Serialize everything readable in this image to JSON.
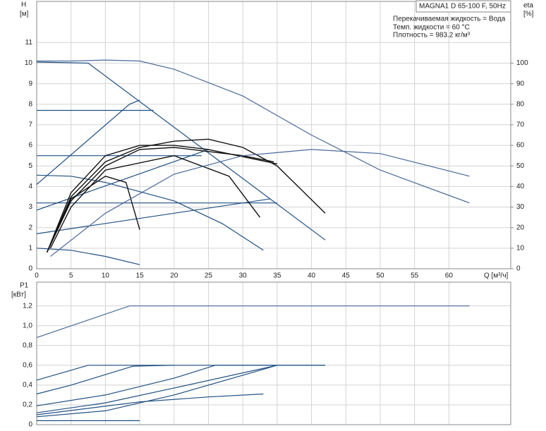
{
  "chart_data": [
    {
      "type": "line",
      "title": "MAGNA1 D 65-100 F, 50Hz",
      "notes": [
        "Перекачиваемая жидкость = Вода",
        "Темп. жидкости = 60 °C",
        "Плотность = 983.2 кг/м³"
      ],
      "y_label": "H",
      "y_unit": "[м]",
      "y2_label": "eta",
      "y2_unit": "[%]",
      "x_label": "Q [м³/ч]",
      "xlim": [
        0,
        69
      ],
      "xticks": [
        0,
        5,
        10,
        15,
        20,
        25,
        30,
        35,
        40,
        45,
        50,
        55,
        60
      ],
      "ylim": [
        0,
        13
      ],
      "yticks": [
        0,
        1,
        2,
        3,
        4,
        5,
        6,
        7,
        8,
        9,
        10,
        11
      ],
      "y2lim": [
        0,
        130
      ],
      "y2ticks": [
        0,
        10,
        20,
        30,
        40,
        50,
        60,
        70,
        80,
        90,
        100
      ],
      "grid": true,
      "series": [
        {
          "color": "#1f4f82",
          "x": [
            0,
            7.5,
            42
          ],
          "values": [
            10.05,
            10,
            1.4
          ]
        },
        {
          "color": "#1f4f82",
          "x": [
            0,
            17
          ],
          "values": [
            7.7,
            7.7
          ]
        },
        {
          "color": "#1f4f82",
          "x": [
            0,
            24
          ],
          "values": [
            5.5,
            5.5
          ]
        },
        {
          "color": "#1f4f82",
          "x": [
            0,
            35
          ],
          "values": [
            3.2,
            3.2
          ]
        },
        {
          "color": "#1f4f82",
          "x": [
            0,
            13.5,
            15
          ],
          "values": [
            4.1,
            8,
            8.2
          ]
        },
        {
          "color": "#1f4f82",
          "x": [
            0,
            25
          ],
          "values": [
            2.85,
            5.8
          ]
        },
        {
          "color": "#1f4f82",
          "x": [
            0,
            34
          ],
          "values": [
            1.7,
            3.4
          ]
        },
        {
          "color": "#1f4f82",
          "x": [
            0,
            5,
            10,
            20,
            27,
            33
          ],
          "values": [
            4.55,
            4.5,
            4.2,
            3.3,
            2.2,
            0.9
          ]
        },
        {
          "color": "#1f4f82",
          "x": [
            0,
            5,
            10,
            15
          ],
          "values": [
            1,
            0.9,
            0.6,
            0.2
          ]
        },
        {
          "color": "#111111",
          "x": [
            1.5,
            5,
            10,
            15,
            20,
            25,
            30,
            35,
            42
          ],
          "values": [
            0.8,
            3.5,
            5.2,
            5.9,
            6.2,
            6.3,
            5.9,
            5,
            2.7
          ]
        },
        {
          "color": "#111111",
          "x": [
            1.5,
            5,
            10,
            15,
            20,
            25,
            35
          ],
          "values": [
            0.8,
            3.7,
            5.5,
            6,
            6,
            5.8,
            5.1
          ]
        },
        {
          "color": "#111111",
          "x": [
            1.5,
            5,
            10,
            15,
            20,
            25,
            30,
            34.5
          ],
          "values": [
            0.8,
            3.3,
            5,
            5.8,
            5.9,
            5.7,
            5.5,
            5.2
          ]
        },
        {
          "color": "#111111",
          "x": [
            1.5,
            5,
            10,
            13,
            15
          ],
          "values": [
            0.8,
            3.4,
            4.5,
            4.2,
            1.9
          ]
        },
        {
          "color": "#111111",
          "x": [
            2,
            5,
            10,
            20,
            28,
            32.5
          ],
          "values": [
            1,
            3,
            4.8,
            5.5,
            4.5,
            2.5
          ]
        },
        {
          "color": "#4a6a9a",
          "axis": "y2",
          "x": [
            0,
            5,
            10,
            15,
            20,
            30,
            40,
            50,
            63
          ],
          "values": [
            101,
            101,
            101.5,
            101,
            97,
            84,
            65,
            48,
            32
          ]
        },
        {
          "color": "#4a6a9a",
          "axis": "y2",
          "x": [
            2,
            10,
            20,
            30,
            40,
            50,
            63
          ],
          "values": [
            6,
            27,
            46,
            55,
            58,
            56,
            45
          ]
        }
      ]
    },
    {
      "type": "line",
      "y_label": "P1",
      "y_unit": "[кВт]",
      "xlim": [
        0,
        69
      ],
      "xticks": [
        0,
        5,
        10,
        15,
        20,
        25,
        30,
        35,
        40,
        45,
        50,
        55,
        60
      ],
      "ylim": [
        0,
        1.44
      ],
      "yticks": [
        {
          "value": 0,
          "label": "0"
        },
        {
          "value": 0.2,
          "label": "0,2"
        },
        {
          "value": 0.4,
          "label": "0,4"
        },
        {
          "value": 0.6,
          "label": "0,6"
        },
        {
          "value": 0.8,
          "label": "0,8"
        },
        {
          "value": 1.0,
          "label": "1,0"
        },
        {
          "value": 1.2,
          "label": "1,2"
        }
      ],
      "grid": true,
      "series": [
        {
          "color": "#4a6a9a",
          "x": [
            0,
            13.5,
            63
          ],
          "values": [
            0.88,
            1.2,
            1.2
          ]
        },
        {
          "color": "#1f4f82",
          "x": [
            0,
            7.5,
            42
          ],
          "values": [
            0.45,
            0.6,
            0.6
          ]
        },
        {
          "color": "#1f4f82",
          "x": [
            0,
            5,
            14,
            20
          ],
          "values": [
            0.31,
            0.4,
            0.59,
            0.6
          ]
        },
        {
          "color": "#1f4f82",
          "x": [
            0,
            10,
            20,
            26,
            42
          ],
          "values": [
            0.19,
            0.3,
            0.47,
            0.6,
            0.6
          ]
        },
        {
          "color": "#1f4f82",
          "x": [
            0,
            10,
            20,
            35
          ],
          "values": [
            0.12,
            0.22,
            0.37,
            0.6
          ]
        },
        {
          "color": "#1f4f82",
          "x": [
            0,
            10,
            20,
            30,
            35
          ],
          "values": [
            0.08,
            0.14,
            0.3,
            0.5,
            0.6
          ]
        },
        {
          "color": "#1f4f82",
          "x": [
            0,
            15,
            25,
            33
          ],
          "values": [
            0.1,
            0.23,
            0.28,
            0.31
          ]
        },
        {
          "color": "#1f4f82",
          "x": [
            0,
            15
          ],
          "values": [
            0.04,
            0.04
          ]
        }
      ]
    }
  ]
}
